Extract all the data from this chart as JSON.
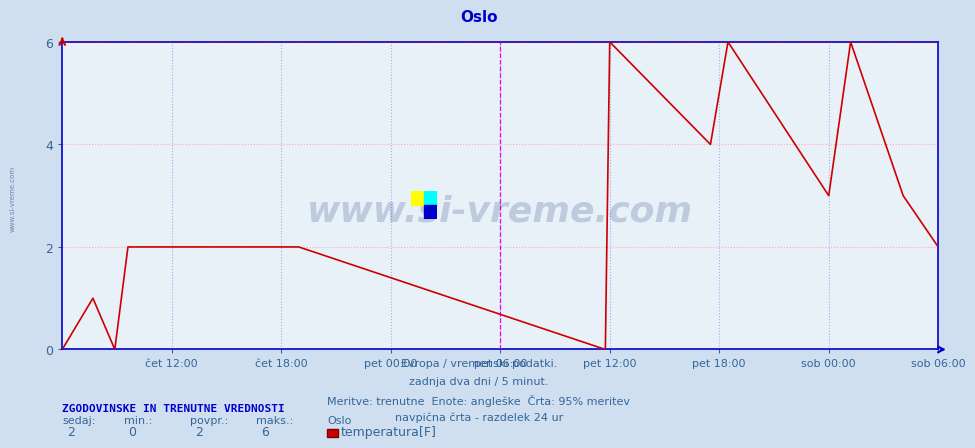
{
  "title": "Oslo",
  "bg_color": "#d0dff0",
  "plot_bg_color": "#e8f0f8",
  "line_color": "#cc0000",
  "grid_color_h": "#ffaaaa",
  "grid_color_v": "#aaaaee",
  "vline_color": "#ee00ee",
  "border_color": "#0000cc",
  "title_color": "#0000cc",
  "xlabel_color": "#336699",
  "text_color": "#336699",
  "watermark_color": "#1a3a7a",
  "ylim": [
    0,
    6
  ],
  "yticks": [
    0,
    2,
    4,
    6
  ],
  "x_tick_labels": [
    "čet 12:00",
    "čet 18:00",
    "pet 00:00",
    "pet 06:00",
    "pet 12:00",
    "pet 18:00",
    "sob 00:00",
    "sob 06:00"
  ],
  "x_tick_positions": [
    0.125,
    0.25,
    0.375,
    0.5,
    0.625,
    0.75,
    0.875,
    1.0
  ],
  "vline_positions": [
    0.5,
    1.0
  ],
  "subtitle_lines": [
    "Evropa / vremenski podatki.",
    "zadnja dva dni / 5 minut.",
    "Meritve: trenutne  Enote: angleške  Črta: 95% meritev",
    "navpična črta - razdelek 24 ur"
  ],
  "stats_title": "ZGODOVINSKE IN TRENUTNE VREDNOSTI",
  "stats_col_labels": [
    "sedaj:",
    "min.:",
    "povpr.:",
    "maks.:"
  ],
  "stats_col_values": [
    "2",
    "0",
    "2",
    "6"
  ],
  "series_name": "Oslo",
  "legend_label": "temperatura[F]",
  "legend_color": "#cc0000",
  "data_x": [
    0.0,
    0.0,
    0.035,
    0.035,
    0.06,
    0.06,
    0.075,
    0.075,
    0.27,
    0.27,
    0.62,
    0.62,
    0.625,
    0.625,
    0.74,
    0.74,
    0.76,
    0.76,
    0.875,
    0.875,
    0.9,
    0.9,
    0.96,
    0.96,
    1.0
  ],
  "data_y": [
    0,
    0,
    1,
    1,
    0,
    0,
    2,
    2,
    2,
    2,
    0,
    0,
    6,
    6,
    4,
    4,
    6,
    6,
    3,
    3,
    6,
    6,
    3,
    3,
    2
  ],
  "watermark_text": "www.si-vreme.com",
  "side_watermark": "www.si-vreme.com"
}
